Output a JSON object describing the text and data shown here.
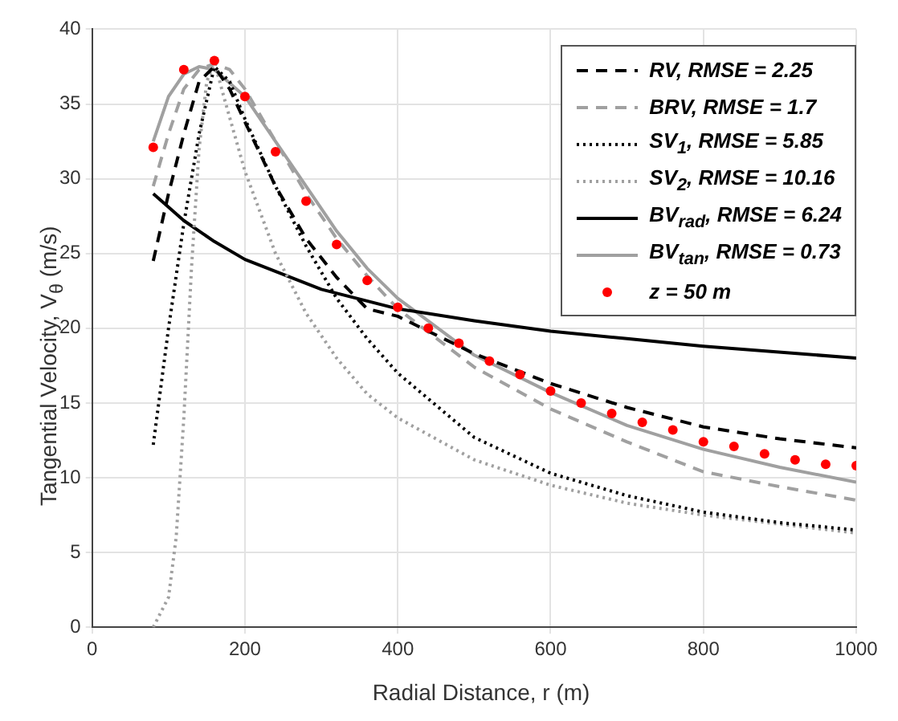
{
  "chart_data": {
    "type": "line",
    "xlabel": "Radial Distance, r (m)",
    "ylabel": "Tangential Velocity, V$_{θ}$ (m/s)",
    "xlim": [
      0,
      1000
    ],
    "xticks": [
      0,
      200,
      400,
      600,
      800,
      1000
    ],
    "ylim": [
      0,
      40
    ],
    "yticks": [
      0,
      5,
      10,
      15,
      20,
      25,
      30,
      35,
      40
    ],
    "grid": true,
    "legend": "top right",
    "marker": "none",
    "series": [
      {
        "name": "RV, RMSE = 2.25",
        "color": "#000000",
        "line_style": "dashed",
        "x": [
          80,
          100,
          120,
          140,
          160,
          180,
          200,
          240,
          280,
          320,
          360,
          400,
          500,
          600,
          700,
          800,
          900,
          1000
        ],
        "values": [
          24.5,
          29,
          33,
          36.5,
          37.5,
          36,
          33.8,
          29.5,
          26,
          23.4,
          21.3,
          20.8,
          18.3,
          16.3,
          14.7,
          13.4,
          12.6,
          12
        ]
      },
      {
        "name": "BRV, RMSE = 1.7",
        "color": "#a0a0a0",
        "line_style": "dashed",
        "x": [
          80,
          100,
          120,
          140,
          160,
          180,
          200,
          240,
          280,
          320,
          360,
          400,
          500,
          600,
          700,
          800,
          900,
          1000
        ],
        "values": [
          29.5,
          33,
          36,
          37.3,
          37.7,
          37.3,
          36,
          32.5,
          29,
          26,
          23.5,
          21.3,
          17.4,
          14.6,
          12.4,
          10.4,
          9.4,
          8.5
        ]
      },
      {
        "name": "SV$_{1}$, RMSE = 5.85",
        "color": "#000000",
        "line_style": "dotted",
        "x": [
          80,
          100,
          120,
          140,
          160,
          180,
          200,
          240,
          280,
          320,
          360,
          400,
          500,
          600,
          700,
          800,
          900,
          1000
        ],
        "values": [
          12.2,
          20,
          27,
          33,
          37.5,
          36.5,
          34,
          29.5,
          25.5,
          22,
          19.3,
          17,
          12.7,
          10.3,
          8.8,
          7.7,
          7,
          6.5
        ]
      },
      {
        "name": "SV$_{2}$, RMSE = 10.16",
        "color": "#a0a0a0",
        "line_style": "dotted",
        "x": [
          80,
          100,
          110,
          120,
          130,
          140,
          150,
          160,
          175,
          200,
          240,
          280,
          320,
          360,
          400,
          500,
          600,
          700,
          800,
          900,
          1000
        ],
        "values": [
          0,
          2,
          6,
          14,
          24,
          32,
          36.5,
          37.8,
          35,
          30.5,
          25,
          21,
          18,
          15.6,
          14,
          11.2,
          9.5,
          8.3,
          7.5,
          6.9,
          6.3
        ]
      },
      {
        "name": "BV$_{rad}$, RMSE = 6.24",
        "color": "#000000",
        "line_style": "solid",
        "x": [
          80,
          120,
          160,
          200,
          300,
          400,
          500,
          600,
          700,
          800,
          1000
        ],
        "values": [
          29,
          27.2,
          25.8,
          24.6,
          22.6,
          21.3,
          20.5,
          19.8,
          19.3,
          18.8,
          18
        ]
      },
      {
        "name": "BV$_{tan}$, RMSE = 0.73",
        "color": "#a0a0a0",
        "line_style": "solid",
        "x": [
          80,
          100,
          120,
          140,
          160,
          200,
          240,
          280,
          320,
          360,
          400,
          500,
          600,
          700,
          800,
          900,
          1000
        ],
        "values": [
          32.5,
          35.5,
          37,
          37.5,
          37.3,
          35.5,
          32.5,
          29.5,
          26.5,
          24,
          22,
          18.2,
          15.7,
          13.5,
          11.9,
          10.7,
          9.7
        ]
      },
      {
        "name": "z = 50 m",
        "color": "#ff0000",
        "type": "scatter",
        "marker": "circle",
        "x": [
          80,
          120,
          160,
          200,
          240,
          280,
          320,
          360,
          400,
          440,
          480,
          520,
          560,
          600,
          640,
          680,
          720,
          760,
          800,
          840,
          880,
          920,
          960,
          1000
        ],
        "values": [
          32.1,
          37.3,
          37.9,
          35.5,
          31.8,
          28.5,
          25.6,
          23.2,
          21.4,
          20,
          19,
          17.8,
          16.9,
          15.8,
          15,
          14.3,
          13.7,
          13.2,
          12.4,
          12.1,
          11.6,
          11.2,
          10.9,
          10.8
        ]
      }
    ]
  }
}
